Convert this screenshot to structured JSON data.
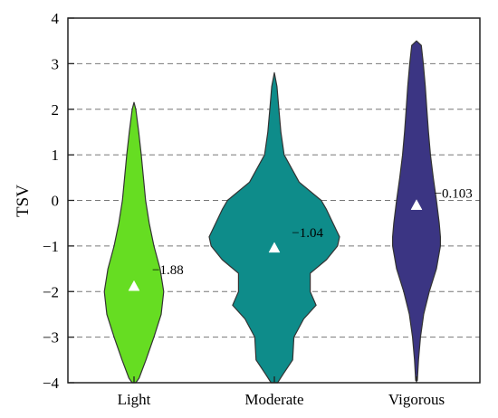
{
  "chart_data": {
    "type": "violin",
    "ylabel": "TSV",
    "xlabel": "",
    "ylim": [
      -4,
      4
    ],
    "yticks": [
      "4",
      "3",
      "2",
      "1",
      "0",
      "−1",
      "−2",
      "−3",
      "−4"
    ],
    "grid": "horizontal dashed",
    "categories": [
      "Light",
      "Moderate",
      "Vigorous"
    ],
    "series": [
      {
        "category": "Light",
        "color": "#66dd22",
        "mean": -1.88,
        "mean_label": "−1.88",
        "range": [
          -4,
          2.15
        ],
        "profile": [
          [
            -4,
            0.05
          ],
          [
            -3.9,
            0.14
          ],
          [
            -3.5,
            0.33
          ],
          [
            -3.0,
            0.55
          ],
          [
            -2.5,
            0.75
          ],
          [
            -2.0,
            0.82
          ],
          [
            -1.5,
            0.72
          ],
          [
            -1.0,
            0.55
          ],
          [
            -0.5,
            0.42
          ],
          [
            0.0,
            0.32
          ],
          [
            0.5,
            0.26
          ],
          [
            1.0,
            0.2
          ],
          [
            1.5,
            0.13
          ],
          [
            2.0,
            0.05
          ],
          [
            2.15,
            0.0
          ]
        ]
      },
      {
        "category": "Moderate",
        "color": "#0e8c8a",
        "mean": -1.04,
        "mean_label": "−1.04",
        "range": [
          -4,
          2.8
        ],
        "profile": [
          [
            -4,
            0.05
          ],
          [
            -3.8,
            0.14
          ],
          [
            -3.5,
            0.28
          ],
          [
            -3.0,
            0.3
          ],
          [
            -2.6,
            0.45
          ],
          [
            -2.3,
            0.64
          ],
          [
            -2.0,
            0.55
          ],
          [
            -1.6,
            0.55
          ],
          [
            -1.3,
            0.8
          ],
          [
            -1.0,
            0.97
          ],
          [
            -0.8,
            1.0
          ],
          [
            -0.5,
            0.9
          ],
          [
            -0.2,
            0.8
          ],
          [
            0.0,
            0.72
          ],
          [
            0.4,
            0.38
          ],
          [
            1.0,
            0.15
          ],
          [
            1.5,
            0.1
          ],
          [
            2.0,
            0.07
          ],
          [
            2.5,
            0.04
          ],
          [
            2.8,
            0.0
          ]
        ]
      },
      {
        "category": "Vigorous",
        "color": "#3b3583",
        "mean": -0.103,
        "mean_label": "−0.103",
        "range": [
          -3.95,
          3.5
        ],
        "profile": [
          [
            -3.95,
            0.02
          ],
          [
            -3.5,
            0.05
          ],
          [
            -3.0,
            0.1
          ],
          [
            -2.5,
            0.18
          ],
          [
            -2.0,
            0.32
          ],
          [
            -1.5,
            0.5
          ],
          [
            -1.0,
            0.6
          ],
          [
            -0.8,
            0.6
          ],
          [
            -0.5,
            0.57
          ],
          [
            0.0,
            0.5
          ],
          [
            0.5,
            0.42
          ],
          [
            1.0,
            0.35
          ],
          [
            1.5,
            0.3
          ],
          [
            2.0,
            0.26
          ],
          [
            2.5,
            0.22
          ],
          [
            3.0,
            0.17
          ],
          [
            3.4,
            0.12
          ],
          [
            3.5,
            0.0
          ]
        ]
      }
    ]
  }
}
